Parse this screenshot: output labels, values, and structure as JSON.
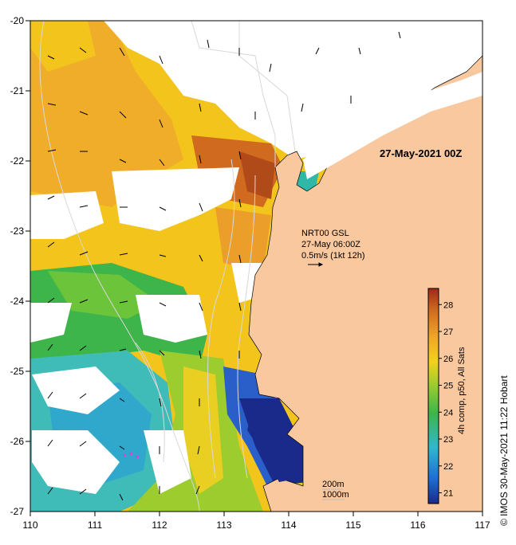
{
  "map": {
    "date_label": "27-May-2021 00Z",
    "current_info": [
      "NRT00 GSL",
      "27-May 06:00Z",
      "0.5m/s (1kt 12h)"
    ],
    "depth_labels": [
      "200m",
      "1000m"
    ],
    "credit": "©  IMOS 30-May-2021 11:22 Hobart",
    "colorbar_label": "4h comp, p50, All Sats",
    "colorbar_ticks": [
      "21",
      "22",
      "23",
      "24",
      "25",
      "26",
      "27",
      "28"
    ],
    "colorbar_range": [
      20.6,
      28.6
    ],
    "x_ticks": [
      "110",
      "111",
      "112",
      "113",
      "114",
      "115",
      "116",
      "117"
    ],
    "y_ticks": [
      "-20",
      "-21",
      "-22",
      "-23",
      "-24",
      "-25",
      "-26",
      "-27"
    ],
    "lon_range": [
      110,
      117
    ],
    "lat_range": [
      -27,
      -20
    ],
    "colors": {
      "land": "#f9c89e",
      "cloud": "#ffffff",
      "sst_scale": [
        "#1a2a8a",
        "#1e6fd6",
        "#2fb8cc",
        "#3db54a",
        "#9ccc2e",
        "#f2d21b",
        "#f0a327",
        "#d06a1e",
        "#a02818"
      ]
    }
  }
}
